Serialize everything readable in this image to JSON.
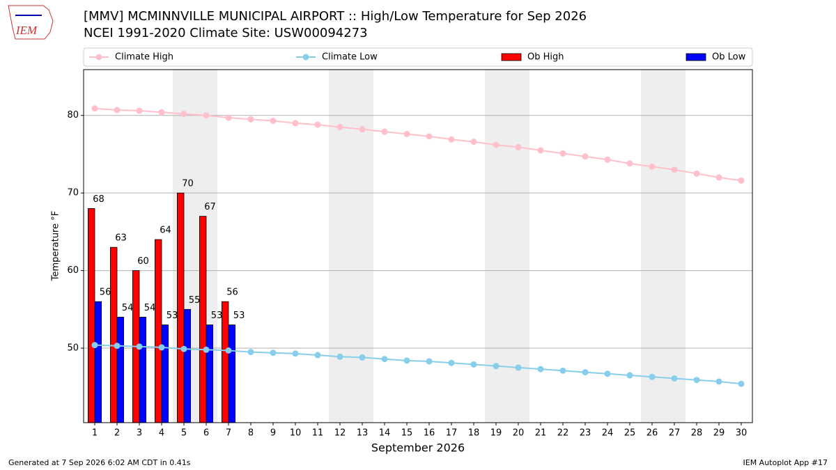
{
  "logo_text": "IEM",
  "chart_data": {
    "type": "bar",
    "title": "[MMV] MCMINNVILLE MUNICIPAL AIRPORT :: High/Low Temperature for Sep 2026",
    "subtitle": "NCEI 1991-2020 Climate Site: USW00094273",
    "xlabel": "September 2026",
    "ylabel": "Temperature °F",
    "categories": [
      "1",
      "2",
      "3",
      "4",
      "5",
      "6",
      "7",
      "8",
      "9",
      "10",
      "11",
      "12",
      "13",
      "14",
      "15",
      "16",
      "17",
      "18",
      "19",
      "20",
      "21",
      "22",
      "23",
      "24",
      "25",
      "26",
      "27",
      "28",
      "29",
      "30"
    ],
    "highlight_days": [
      "5",
      "6",
      "12",
      "13",
      "19",
      "20",
      "26",
      "27"
    ],
    "highlight_color": "#eeeeee",
    "series": [
      {
        "name": "Climate High",
        "type": "line",
        "color": "#ffc0cb",
        "values": [
          80.9,
          80.7,
          80.6,
          80.4,
          80.2,
          80.0,
          79.7,
          79.5,
          79.3,
          79.0,
          78.8,
          78.5,
          78.2,
          77.9,
          77.6,
          77.3,
          76.9,
          76.6,
          76.2,
          75.9,
          75.5,
          75.1,
          74.7,
          74.3,
          73.8,
          73.4,
          73.0,
          72.5,
          72.0,
          71.6
        ]
      },
      {
        "name": "Climate Low",
        "type": "line",
        "color": "#87ceeb",
        "values": [
          50.4,
          50.3,
          50.2,
          50.1,
          49.9,
          49.8,
          49.7,
          49.5,
          49.4,
          49.3,
          49.1,
          48.9,
          48.8,
          48.6,
          48.4,
          48.3,
          48.1,
          47.9,
          47.7,
          47.5,
          47.3,
          47.1,
          46.9,
          46.7,
          46.5,
          46.3,
          46.1,
          45.9,
          45.7,
          45.4
        ]
      },
      {
        "name": "Ob High",
        "type": "bar",
        "color": "#ff0000",
        "values": [
          68,
          63,
          60,
          64,
          70,
          67,
          56,
          null,
          null,
          null,
          null,
          null,
          null,
          null,
          null,
          null,
          null,
          null,
          null,
          null,
          null,
          null,
          null,
          null,
          null,
          null,
          null,
          null,
          null,
          null
        ]
      },
      {
        "name": "Ob Low",
        "type": "bar",
        "color": "#0000ff",
        "values": [
          56,
          54,
          54,
          53,
          55,
          53,
          53,
          null,
          null,
          null,
          null,
          null,
          null,
          null,
          null,
          null,
          null,
          null,
          null,
          null,
          null,
          null,
          null,
          null,
          null,
          null,
          null,
          null,
          null,
          null
        ]
      }
    ],
    "ylim": [
      40.4,
      85.9
    ],
    "yticks": [
      50,
      60,
      70,
      80
    ],
    "grid": true,
    "legend": "top"
  },
  "footer": {
    "left": "Generated at 7 Sep 2026 6:02 AM CDT in 0.41s",
    "right": "IEM Autoplot App #17"
  }
}
